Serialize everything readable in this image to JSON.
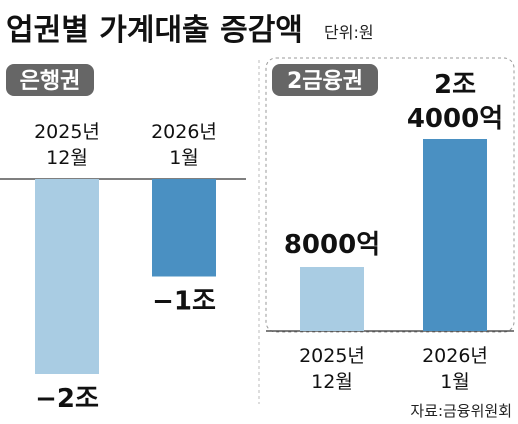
{
  "title": "업권별 가계대출 증감액",
  "unit": "단위:원",
  "source": "자료:금융위원회",
  "colors": {
    "earlier": "#a9cce3",
    "later": "#4a90c2",
    "badge": "#666666",
    "panel_border": "#999999"
  },
  "chart_data": [
    {
      "type": "bar",
      "panel_label": "은행권",
      "categories": [
        [
          "2025년",
          "12월"
        ],
        [
          "2026년",
          "1월"
        ]
      ],
      "values": [
        -20000,
        -10000
      ],
      "value_labels": [
        "−2조",
        "−1조"
      ],
      "value_unit": "억원"
    },
    {
      "type": "bar",
      "panel_label": "2금융권",
      "categories": [
        [
          "2025년",
          "12월"
        ],
        [
          "2026년",
          "1월"
        ]
      ],
      "values": [
        8000,
        24000
      ],
      "value_labels": [
        [
          "8000억"
        ],
        [
          "2조",
          "4000억"
        ]
      ],
      "value_unit": "억원"
    }
  ]
}
